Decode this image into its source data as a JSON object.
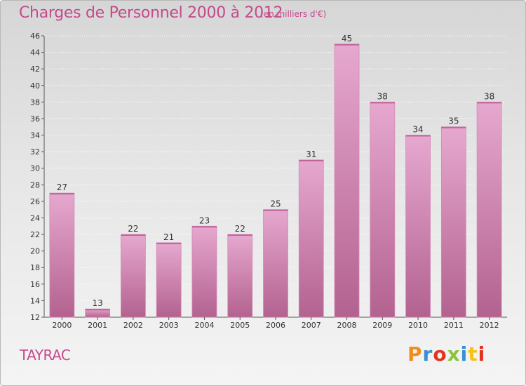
{
  "header": {
    "title": "Charges de Personnel 2000 à 2012",
    "subtitle": "(en milliers d'€)"
  },
  "footer": {
    "commune": "TAYRAC",
    "logo_text": "Proxiti",
    "logo_colors": [
      "#f28c1a",
      "#3a8fd6",
      "#e2331e",
      "#8ac43f",
      "#3a8fd6",
      "#f5c21a",
      "#e2331e"
    ]
  },
  "colors": {
    "bar_light": "#e6a8cf",
    "bar_dark": "#b3628f",
    "bar_top": "#d58ab6",
    "title": "#c54a8c"
  },
  "chart_data": {
    "type": "bar",
    "title": "Charges de Personnel 2000 à 2012",
    "subtitle": "(en milliers d'€)",
    "categories": [
      "2000",
      "2001",
      "2002",
      "2003",
      "2004",
      "2005",
      "2006",
      "2007",
      "2008",
      "2009",
      "2010",
      "2011",
      "2012"
    ],
    "values": [
      27,
      13,
      22,
      21,
      23,
      22,
      25,
      31,
      45,
      38,
      34,
      35,
      38
    ],
    "ylim": [
      12,
      46
    ],
    "yticks": [
      12,
      14,
      16,
      18,
      20,
      22,
      24,
      26,
      28,
      30,
      32,
      34,
      36,
      38,
      40,
      42,
      44,
      46
    ],
    "grid": true,
    "data_labels": true,
    "legend": "none"
  }
}
